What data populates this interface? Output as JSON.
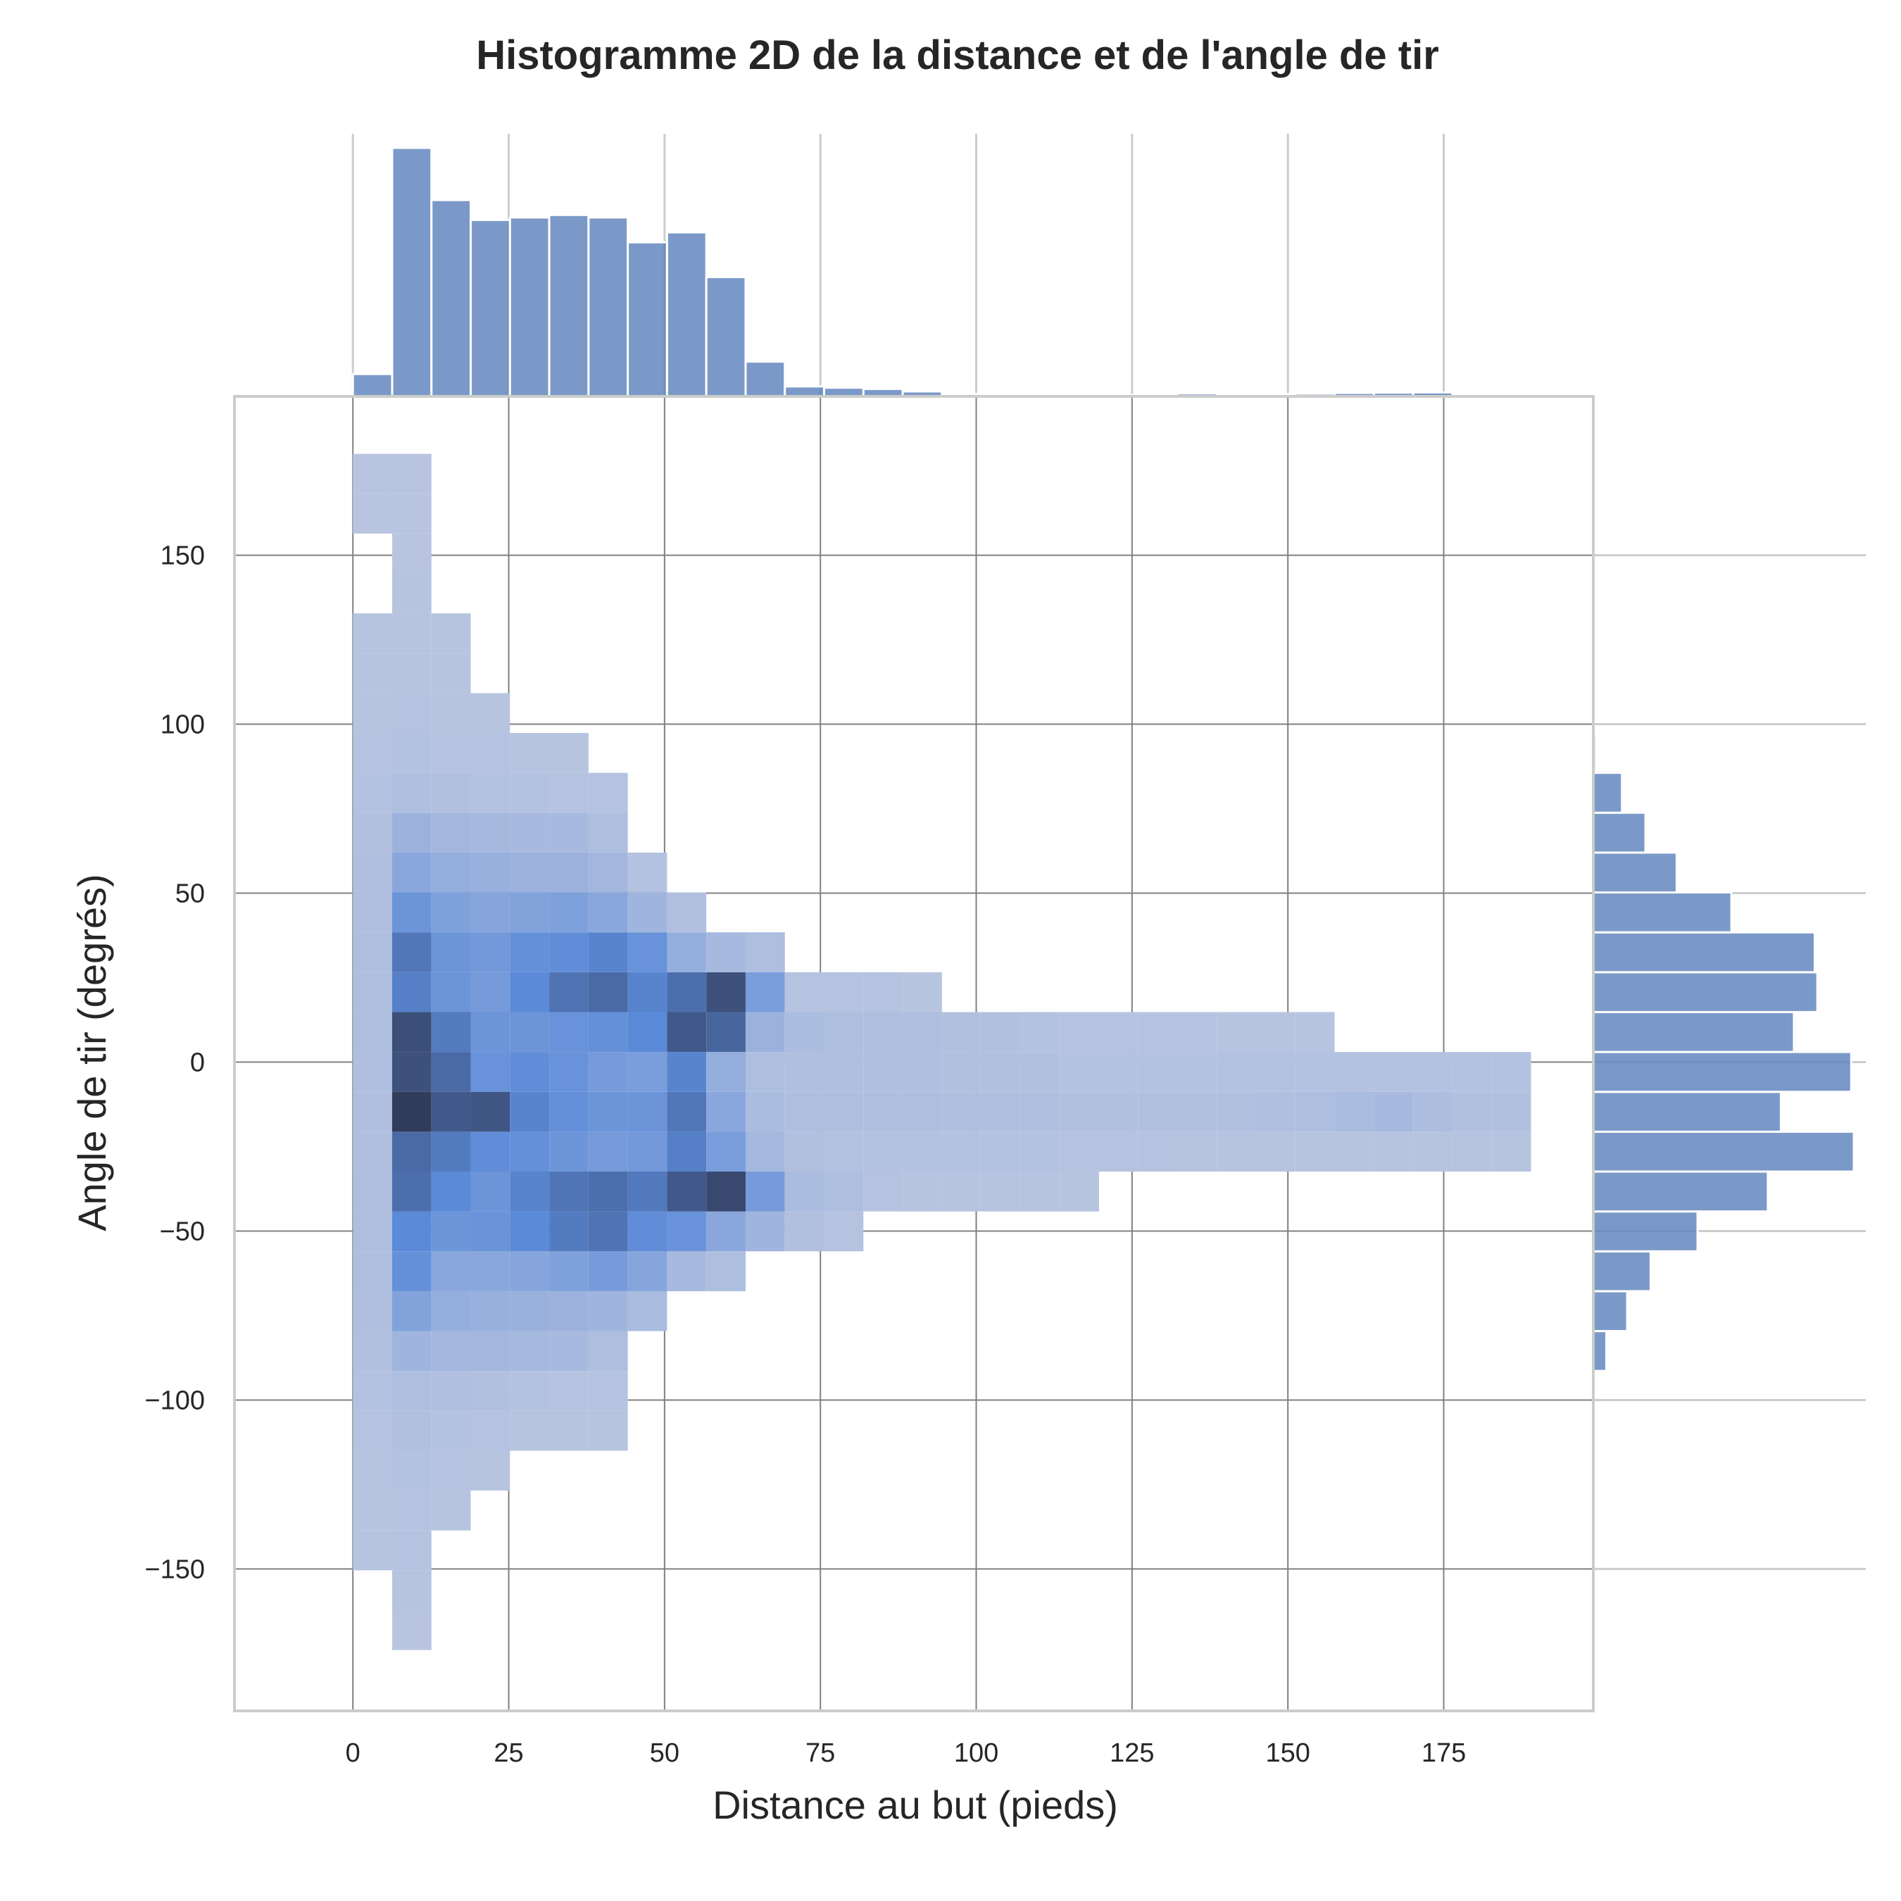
{
  "chart_data": {
    "type": "heatmap",
    "title": "Histogramme 2D de la distance et de l'angle de tir",
    "xlabel": "Distance au but (pieds)",
    "ylabel": "Angle de tir (degrés)",
    "xlim": [
      -19,
      199
    ],
    "ylim": [
      -192,
      197
    ],
    "x_ticks": [
      0,
      25,
      50,
      75,
      100,
      125,
      150,
      175
    ],
    "x_tick_labels": [
      "0",
      "25",
      "50",
      "75",
      "100",
      "125",
      "150",
      "175"
    ],
    "y_ticks": [
      -150,
      -100,
      -50,
      0,
      50,
      100,
      150
    ],
    "y_tick_labels": [
      "−150",
      "−100",
      "−50",
      "0",
      "50",
      "100",
      "150"
    ],
    "grid": true,
    "x_bin_edges": [
      0,
      6.3,
      12.6,
      18.9,
      25.2,
      31.5,
      37.8,
      44.1,
      50.4,
      56.7,
      63.0,
      69.3,
      75.6,
      81.9,
      88.2,
      94.5,
      100.8,
      107.1,
      113.4,
      119.7,
      126.0,
      132.3,
      138.6,
      144.9,
      151.2,
      157.5,
      163.8,
      170.1,
      176.4,
      182.7,
      189.0
    ],
    "y_bin_edges": [
      -174,
      -162.2,
      -150.4,
      -138.6,
      -126.8,
      -115.0,
      -103.2,
      -91.4,
      -79.6,
      -67.8,
      -56.0,
      -44.2,
      -32.4,
      -20.6,
      -8.8,
      3.0,
      14.8,
      26.6,
      38.4,
      50.2,
      62.0,
      73.8,
      85.6,
      97.4,
      109.2,
      121.0,
      132.8,
      144.6,
      156.4,
      168.2,
      180.0
    ],
    "density_levels": [
      [
        0,
        0.04,
        0,
        0,
        0,
        0,
        0,
        0,
        0,
        0,
        0,
        0,
        0,
        0,
        0,
        0,
        0,
        0,
        0,
        0,
        0,
        0,
        0,
        0,
        0,
        0,
        0,
        0,
        0,
        0
      ],
      [
        0,
        0.05,
        0,
        0,
        0,
        0,
        0,
        0,
        0,
        0,
        0,
        0,
        0,
        0,
        0,
        0,
        0,
        0,
        0,
        0,
        0,
        0,
        0,
        0,
        0,
        0,
        0,
        0,
        0,
        0
      ],
      [
        0.05,
        0.06,
        0,
        0,
        0,
        0,
        0,
        0,
        0,
        0,
        0,
        0,
        0,
        0,
        0,
        0,
        0,
        0,
        0,
        0,
        0,
        0,
        0,
        0,
        0,
        0,
        0,
        0,
        0,
        0
      ],
      [
        0.05,
        0.06,
        0.05,
        0,
        0,
        0,
        0,
        0,
        0,
        0,
        0,
        0,
        0,
        0,
        0,
        0,
        0,
        0,
        0,
        0,
        0,
        0,
        0,
        0,
        0,
        0,
        0,
        0,
        0,
        0
      ],
      [
        0.05,
        0.07,
        0.06,
        0.05,
        0,
        0,
        0,
        0,
        0,
        0,
        0,
        0,
        0,
        0,
        0,
        0,
        0,
        0,
        0,
        0,
        0,
        0,
        0,
        0,
        0,
        0,
        0,
        0,
        0,
        0
      ],
      [
        0.06,
        0.08,
        0.07,
        0.06,
        0.05,
        0.05,
        0.05,
        0,
        0,
        0,
        0,
        0,
        0,
        0,
        0,
        0,
        0,
        0,
        0,
        0,
        0,
        0,
        0,
        0,
        0,
        0,
        0,
        0,
        0,
        0
      ],
      [
        0.07,
        0.1,
        0.09,
        0.08,
        0.07,
        0.06,
        0.06,
        0,
        0,
        0,
        0,
        0,
        0,
        0,
        0,
        0,
        0,
        0,
        0,
        0,
        0,
        0,
        0,
        0,
        0,
        0,
        0,
        0,
        0,
        0
      ],
      [
        0.08,
        0.18,
        0.16,
        0.16,
        0.15,
        0.14,
        0.1,
        0,
        0,
        0,
        0,
        0,
        0,
        0,
        0,
        0,
        0,
        0,
        0,
        0,
        0,
        0,
        0,
        0,
        0,
        0,
        0,
        0,
        0,
        0
      ],
      [
        0.09,
        0.34,
        0.24,
        0.22,
        0.21,
        0.2,
        0.18,
        0.12,
        0,
        0,
        0,
        0,
        0,
        0,
        0,
        0,
        0,
        0,
        0,
        0,
        0,
        0,
        0,
        0,
        0,
        0,
        0,
        0,
        0,
        0
      ],
      [
        0.1,
        0.5,
        0.3,
        0.3,
        0.32,
        0.36,
        0.4,
        0.32,
        0.14,
        0.1,
        0,
        0,
        0,
        0,
        0,
        0,
        0,
        0,
        0,
        0,
        0,
        0,
        0,
        0,
        0,
        0,
        0,
        0,
        0,
        0
      ],
      [
        0.1,
        0.55,
        0.45,
        0.47,
        0.55,
        0.62,
        0.66,
        0.52,
        0.48,
        0.3,
        0.18,
        0.08,
        0.06,
        0,
        0,
        0,
        0,
        0,
        0,
        0,
        0,
        0,
        0,
        0,
        0,
        0,
        0,
        0,
        0,
        0
      ],
      [
        0.1,
        0.68,
        0.55,
        0.46,
        0.58,
        0.65,
        0.68,
        0.63,
        0.78,
        0.86,
        0.4,
        0.12,
        0.1,
        0.06,
        0.05,
        0.05,
        0.05,
        0.05,
        0.05,
        0,
        0,
        0,
        0,
        0,
        0,
        0,
        0,
        0,
        0,
        0
      ],
      [
        0.09,
        0.7,
        0.62,
        0.52,
        0.5,
        0.45,
        0.4,
        0.42,
        0.6,
        0.38,
        0.15,
        0.08,
        0.07,
        0.07,
        0.07,
        0.07,
        0.07,
        0.07,
        0.06,
        0.06,
        0.06,
        0.05,
        0.05,
        0.05,
        0.05,
        0.05,
        0.05,
        0.05,
        0.05,
        0.05
      ],
      [
        0.09,
        0.92,
        0.78,
        0.8,
        0.58,
        0.5,
        0.46,
        0.46,
        0.64,
        0.3,
        0.12,
        0.1,
        0.1,
        0.1,
        0.1,
        0.09,
        0.09,
        0.09,
        0.08,
        0.08,
        0.08,
        0.08,
        0.08,
        0.09,
        0.1,
        0.12,
        0.14,
        0.11,
        0.08,
        0.08
      ],
      [
        0.09,
        0.82,
        0.7,
        0.48,
        0.52,
        0.48,
        0.4,
        0.38,
        0.58,
        0.24,
        0.1,
        0.09,
        0.09,
        0.09,
        0.09,
        0.08,
        0.08,
        0.08,
        0.07,
        0.07,
        0.07,
        0.07,
        0.07,
        0.07,
        0.07,
        0.07,
        0.07,
        0.07,
        0.07,
        0.07
      ],
      [
        0.1,
        0.83,
        0.62,
        0.46,
        0.46,
        0.48,
        0.5,
        0.55,
        0.78,
        0.72,
        0.2,
        0.12,
        0.1,
        0.1,
        0.1,
        0.08,
        0.08,
        0.07,
        0.06,
        0.06,
        0.06,
        0.06,
        0.05,
        0.05,
        0.05,
        0,
        0,
        0,
        0,
        0
      ],
      [
        0.1,
        0.6,
        0.46,
        0.4,
        0.55,
        0.66,
        0.7,
        0.58,
        0.68,
        0.82,
        0.38,
        0.06,
        0.06,
        0.06,
        0.05,
        0,
        0,
        0,
        0,
        0,
        0,
        0,
        0,
        0,
        0,
        0,
        0,
        0,
        0,
        0
      ],
      [
        0.1,
        0.64,
        0.46,
        0.42,
        0.5,
        0.52,
        0.58,
        0.48,
        0.24,
        0.14,
        0.1,
        0,
        0,
        0,
        0,
        0,
        0,
        0,
        0,
        0,
        0,
        0,
        0,
        0,
        0,
        0,
        0,
        0,
        0,
        0
      ],
      [
        0.09,
        0.46,
        0.36,
        0.32,
        0.34,
        0.36,
        0.3,
        0.18,
        0.08,
        0,
        0,
        0,
        0,
        0,
        0,
        0,
        0,
        0,
        0,
        0,
        0,
        0,
        0,
        0,
        0,
        0,
        0,
        0,
        0,
        0
      ],
      [
        0.09,
        0.3,
        0.24,
        0.22,
        0.2,
        0.2,
        0.16,
        0.07,
        0,
        0,
        0,
        0,
        0,
        0,
        0,
        0,
        0,
        0,
        0,
        0,
        0,
        0,
        0,
        0,
        0,
        0,
        0,
        0,
        0,
        0
      ],
      [
        0.08,
        0.2,
        0.16,
        0.15,
        0.14,
        0.14,
        0.1,
        0,
        0,
        0,
        0,
        0,
        0,
        0,
        0,
        0,
        0,
        0,
        0,
        0,
        0,
        0,
        0,
        0,
        0,
        0,
        0,
        0,
        0,
        0
      ],
      [
        0.07,
        0.09,
        0.08,
        0.07,
        0.07,
        0.06,
        0.06,
        0,
        0,
        0,
        0,
        0,
        0,
        0,
        0,
        0,
        0,
        0,
        0,
        0,
        0,
        0,
        0,
        0,
        0,
        0,
        0,
        0,
        0,
        0
      ],
      [
        0.06,
        0.07,
        0.06,
        0.06,
        0.05,
        0.05,
        0,
        0,
        0,
        0,
        0,
        0,
        0,
        0,
        0,
        0,
        0,
        0,
        0,
        0,
        0,
        0,
        0,
        0,
        0,
        0,
        0,
        0,
        0,
        0
      ],
      [
        0.05,
        0.06,
        0.05,
        0.05,
        0,
        0,
        0,
        0,
        0,
        0,
        0,
        0,
        0,
        0,
        0,
        0,
        0,
        0,
        0,
        0,
        0,
        0,
        0,
        0,
        0,
        0,
        0,
        0,
        0,
        0
      ],
      [
        0.05,
        0.05,
        0.05,
        0,
        0,
        0,
        0,
        0,
        0,
        0,
        0,
        0,
        0,
        0,
        0,
        0,
        0,
        0,
        0,
        0,
        0,
        0,
        0,
        0,
        0,
        0,
        0,
        0,
        0,
        0
      ],
      [
        0.05,
        0.05,
        0.05,
        0,
        0,
        0,
        0,
        0,
        0,
        0,
        0,
        0,
        0,
        0,
        0,
        0,
        0,
        0,
        0,
        0,
        0,
        0,
        0,
        0,
        0,
        0,
        0,
        0,
        0,
        0
      ],
      [
        0,
        0.05,
        0,
        0,
        0,
        0,
        0,
        0,
        0,
        0,
        0,
        0,
        0,
        0,
        0,
        0,
        0,
        0,
        0,
        0,
        0,
        0,
        0,
        0,
        0,
        0,
        0,
        0,
        0,
        0
      ],
      [
        0,
        0.04,
        0,
        0,
        0,
        0,
        0,
        0,
        0,
        0,
        0,
        0,
        0,
        0,
        0,
        0,
        0,
        0,
        0,
        0,
        0,
        0,
        0,
        0,
        0,
        0,
        0,
        0,
        0,
        0
      ],
      [
        0.04,
        0.04,
        0,
        0,
        0,
        0,
        0,
        0,
        0,
        0,
        0,
        0,
        0,
        0,
        0,
        0,
        0,
        0,
        0,
        0,
        0,
        0,
        0,
        0,
        0,
        0,
        0,
        0,
        0,
        0
      ],
      [
        0.04,
        0.04,
        0,
        0,
        0,
        0,
        0,
        0,
        0,
        0,
        0,
        0,
        0,
        0,
        0,
        0,
        0,
        0,
        0,
        0,
        0,
        0,
        0,
        0,
        0,
        0,
        0,
        0,
        0,
        0
      ]
    ],
    "marginal_x": {
      "bin_edges": [
        0,
        6.3,
        12.6,
        18.9,
        25.2,
        31.5,
        37.8,
        44.1,
        50.4,
        56.7,
        63.0,
        69.3,
        75.6,
        81.9,
        88.2,
        94.5,
        100.8,
        107.1,
        113.4,
        119.7,
        126.0,
        132.3,
        138.6,
        144.9,
        151.2,
        157.5,
        163.8,
        170.1,
        176.4
      ],
      "relative_heights": [
        0.09,
        1.0,
        0.79,
        0.71,
        0.72,
        0.73,
        0.72,
        0.62,
        0.66,
        0.48,
        0.14,
        0.04,
        0.035,
        0.03,
        0.02,
        0.01,
        0.003,
        0.001,
        0.001,
        0.001,
        0.01,
        0.012,
        0.007,
        0.009,
        0.011,
        0.014,
        0.015,
        0.016
      ]
    },
    "marginal_y": {
      "bin_edges": [
        -91.4,
        -79.6,
        -67.8,
        -56.0,
        -44.2,
        -32.4,
        -20.6,
        -8.8,
        3.0,
        14.8,
        26.6,
        38.4,
        50.2,
        62.0,
        73.8,
        85.6,
        97.4
      ],
      "relative_widths": [
        0.05,
        0.13,
        0.22,
        0.4,
        0.67,
        1.0,
        0.72,
        0.99,
        0.77,
        0.86,
        0.85,
        0.53,
        0.32,
        0.2,
        0.11,
        0.01
      ]
    },
    "colors": {
      "low": "#b9c5e0",
      "mid": "#5b8ad8",
      "high": "#2e3550",
      "marginal_bar": "#5a7fba",
      "grid": "#808080",
      "marginal_grid": "#cccccc",
      "frame": "#cccccc",
      "text": "#262626"
    }
  }
}
